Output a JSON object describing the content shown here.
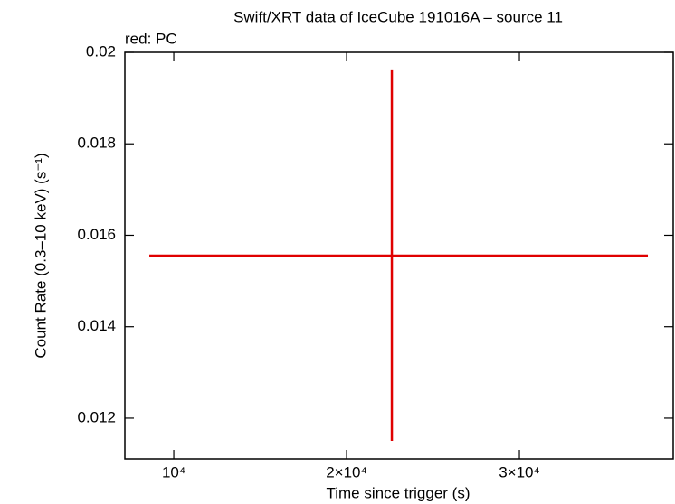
{
  "chart_data": {
    "type": "errorbar",
    "title": "Swift/XRT data of IceCube 191016A – source 11",
    "annotation": "red: PC",
    "xlabel": "Time since trigger (s)",
    "ylabel": "Count Rate (0.3–10 keV) (s⁻¹)",
    "series": [
      {
        "color": "#e00000",
        "x": [
          22618
        ],
        "xerr_minus": [
          14032
        ],
        "xerr_plus": [
          14817
        ],
        "values": [
          0.015556
        ],
        "yerr_minus": [
          0.00405
        ],
        "yerr_plus": [
          0.00407
        ]
      }
    ],
    "xlim": [
      7170,
      38900
    ],
    "xticks": [
      {
        "value": 10000,
        "label": "10⁴"
      },
      {
        "value": 20000,
        "label": "2×10⁴"
      },
      {
        "value": 30000,
        "label": "3×10⁴"
      }
    ],
    "ylim": [
      0.01111,
      0.02
    ],
    "yticks": [
      0.012,
      0.014,
      0.016,
      0.018,
      0.02
    ]
  }
}
